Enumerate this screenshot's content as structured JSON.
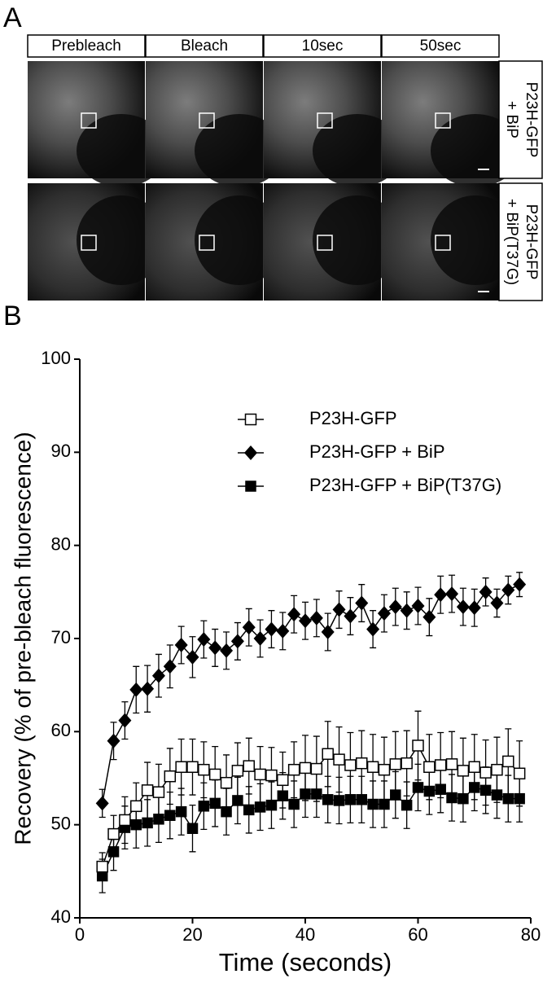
{
  "panel_a": {
    "label": "A",
    "columns": [
      "Prebleach",
      "Bleach",
      "10sec",
      "50sec"
    ],
    "rows": [
      [
        "P23H-GFP",
        "+ BiP"
      ],
      [
        "P23H-GFP",
        "+ BiP(T37G)"
      ]
    ]
  },
  "chart_data": {
    "type": "line",
    "panel_label": "B",
    "x_label": "Time (seconds)",
    "y_label": "Recovery (% of pre-bleach fluorescence)",
    "xlim": [
      0,
      80
    ],
    "xticks": [
      0,
      20,
      40,
      60,
      80
    ],
    "ylim": [
      40,
      100
    ],
    "yticks": [
      40,
      50,
      60,
      70,
      80,
      90,
      100
    ],
    "legend": "upper right",
    "x": [
      4,
      6,
      8,
      10,
      12,
      14,
      16,
      18,
      20,
      22,
      24,
      26,
      28,
      30,
      32,
      34,
      36,
      38,
      40,
      42,
      44,
      46,
      48,
      50,
      52,
      54,
      56,
      58,
      60,
      62,
      64,
      66,
      68,
      70,
      72,
      74,
      76,
      78
    ],
    "series": [
      {
        "name": "P23H-GFP",
        "color": "#000000",
        "marker": "square-open",
        "values": [
          45.5,
          49,
          50.5,
          52,
          53.7,
          53.5,
          55.2,
          56.2,
          56.2,
          55.9,
          55.4,
          54.5,
          55.8,
          56.3,
          55.4,
          55.3,
          54.8,
          55.9,
          56.1,
          56,
          57.6,
          57,
          56.4,
          56.6,
          56.2,
          55.9,
          56.5,
          56.6,
          58.5,
          56.2,
          56.4,
          56.5,
          55.8,
          56.2,
          55.6,
          55.9,
          56.8,
          55.5
        ],
        "errors": [
          1.5,
          2,
          2.5,
          2.5,
          3,
          3,
          3,
          3,
          3,
          3,
          3,
          3,
          3,
          3,
          3,
          3,
          3,
          3,
          3.5,
          3.5,
          3.5,
          3.5,
          3.5,
          3.5,
          3.5,
          3.5,
          3.5,
          3.5,
          3.7,
          3.5,
          3.5,
          3.5,
          3.5,
          3.5,
          3.5,
          3.5,
          3.5,
          3.5
        ]
      },
      {
        "name": "P23H-GFP + BiP",
        "color": "#000000",
        "marker": "diamond",
        "values": [
          52.3,
          59,
          61.2,
          64.5,
          64.6,
          66,
          67,
          69.3,
          68,
          69.9,
          69,
          68.7,
          69.7,
          71.2,
          70,
          71,
          70.8,
          72.6,
          71.9,
          72.2,
          70.7,
          73.1,
          72.4,
          73.8,
          71,
          72.7,
          73.4,
          73,
          73.5,
          72.3,
          74.7,
          74.8,
          73.4,
          73.3,
          75,
          73.8,
          75.2,
          75.8
        ],
        "errors": [
          1.5,
          2,
          2,
          2.5,
          2.5,
          2.3,
          2.3,
          2,
          2.2,
          2,
          2,
          2,
          2,
          2,
          2,
          2,
          2,
          2,
          2,
          2,
          2,
          2,
          2,
          2,
          2,
          2,
          2,
          2,
          2,
          2,
          2,
          2,
          2,
          2,
          1.5,
          1.5,
          1.5,
          1.3
        ]
      },
      {
        "name": "P23H-GFP + BiP(T37G)",
        "color": "#000000",
        "marker": "square",
        "values": [
          44.5,
          47.1,
          49.7,
          50,
          50.2,
          50.6,
          51,
          51.4,
          49.6,
          52,
          52.3,
          51.4,
          52.6,
          51.6,
          51.9,
          52.1,
          53.1,
          52.2,
          53.3,
          53.3,
          52.7,
          52.6,
          52.7,
          52.7,
          52.2,
          52.2,
          53.2,
          52.1,
          54,
          53.6,
          53.8,
          52.9,
          52.8,
          54,
          53.7,
          53.2,
          52.8,
          52.8
        ],
        "errors": [
          1.8,
          2,
          2.3,
          2.5,
          2.5,
          2.5,
          2.5,
          2.5,
          2.5,
          2.5,
          2.5,
          2.5,
          2.5,
          2.5,
          2.5,
          2.5,
          2.5,
          2.5,
          2.5,
          2.5,
          2.5,
          2.5,
          2.5,
          2.5,
          2.5,
          2.5,
          2.5,
          2.5,
          2.5,
          2.5,
          2.5,
          2.5,
          2.5,
          2.5,
          2.5,
          2.5,
          2.5,
          2.5
        ]
      }
    ]
  }
}
